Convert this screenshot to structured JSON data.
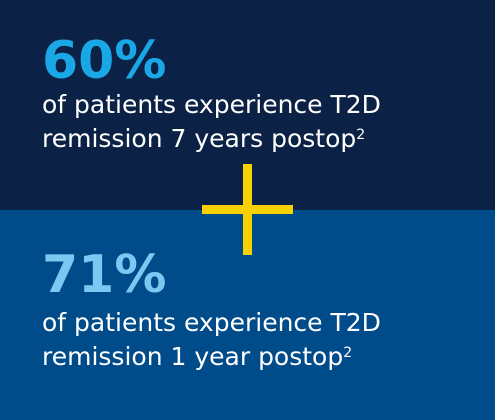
{
  "colors": {
    "top_background": "#0b2146",
    "bottom_background": "#004b8a",
    "top_stat": "#1aa7e6",
    "bottom_stat": "#7cc8f2",
    "plus": "#f7d100"
  },
  "blocks": [
    {
      "stat": "60%",
      "text": "of patients experience T2D",
      "text_line2": "remission 7 years postop",
      "footnote": "2"
    },
    {
      "stat": "71%",
      "text": "of patients experience T2D",
      "text_line2": "remission 1 year postop",
      "footnote": "2"
    }
  ],
  "divider_icon": "plus-icon"
}
